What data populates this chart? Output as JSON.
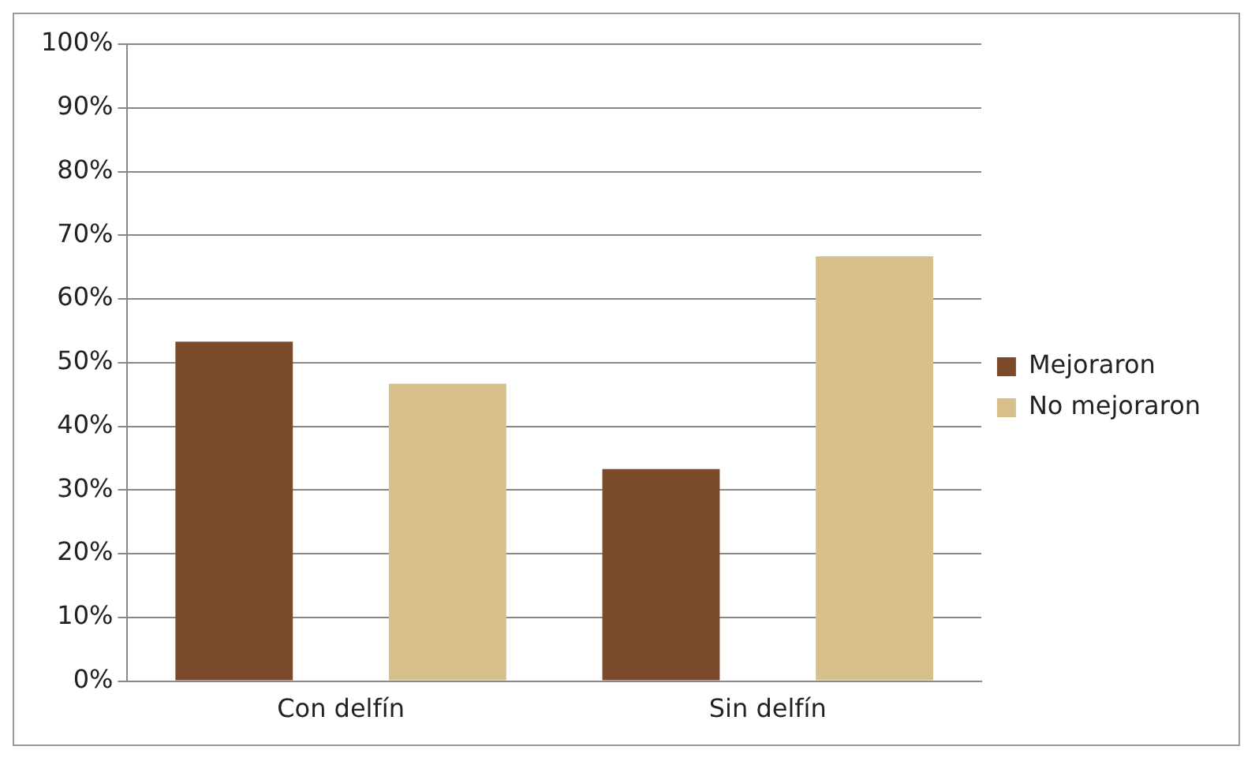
{
  "chart_data": {
    "type": "bar",
    "categories": [
      "Con delfín",
      "Sin delfín"
    ],
    "series": [
      {
        "name": "Mejoraron",
        "color": "#7a4a2a",
        "values": [
          53.3,
          33.3
        ]
      },
      {
        "name": "No mejoraron",
        "color": "#d8c08c",
        "values": [
          46.7,
          66.7
        ]
      }
    ],
    "ylim": [
      0,
      100
    ],
    "yticks": [
      {
        "value": 0,
        "label": "0%"
      },
      {
        "value": 10,
        "label": "10%"
      },
      {
        "value": 20,
        "label": "20%"
      },
      {
        "value": 30,
        "label": "30%"
      },
      {
        "value": 40,
        "label": "40%"
      },
      {
        "value": 50,
        "label": "50%"
      },
      {
        "value": 60,
        "label": "60%"
      },
      {
        "value": 70,
        "label": "70%"
      },
      {
        "value": 80,
        "label": "80%"
      },
      {
        "value": 90,
        "label": "90%"
      },
      {
        "value": 100,
        "label": "100%"
      }
    ],
    "grid": "y",
    "legend": "right"
  }
}
